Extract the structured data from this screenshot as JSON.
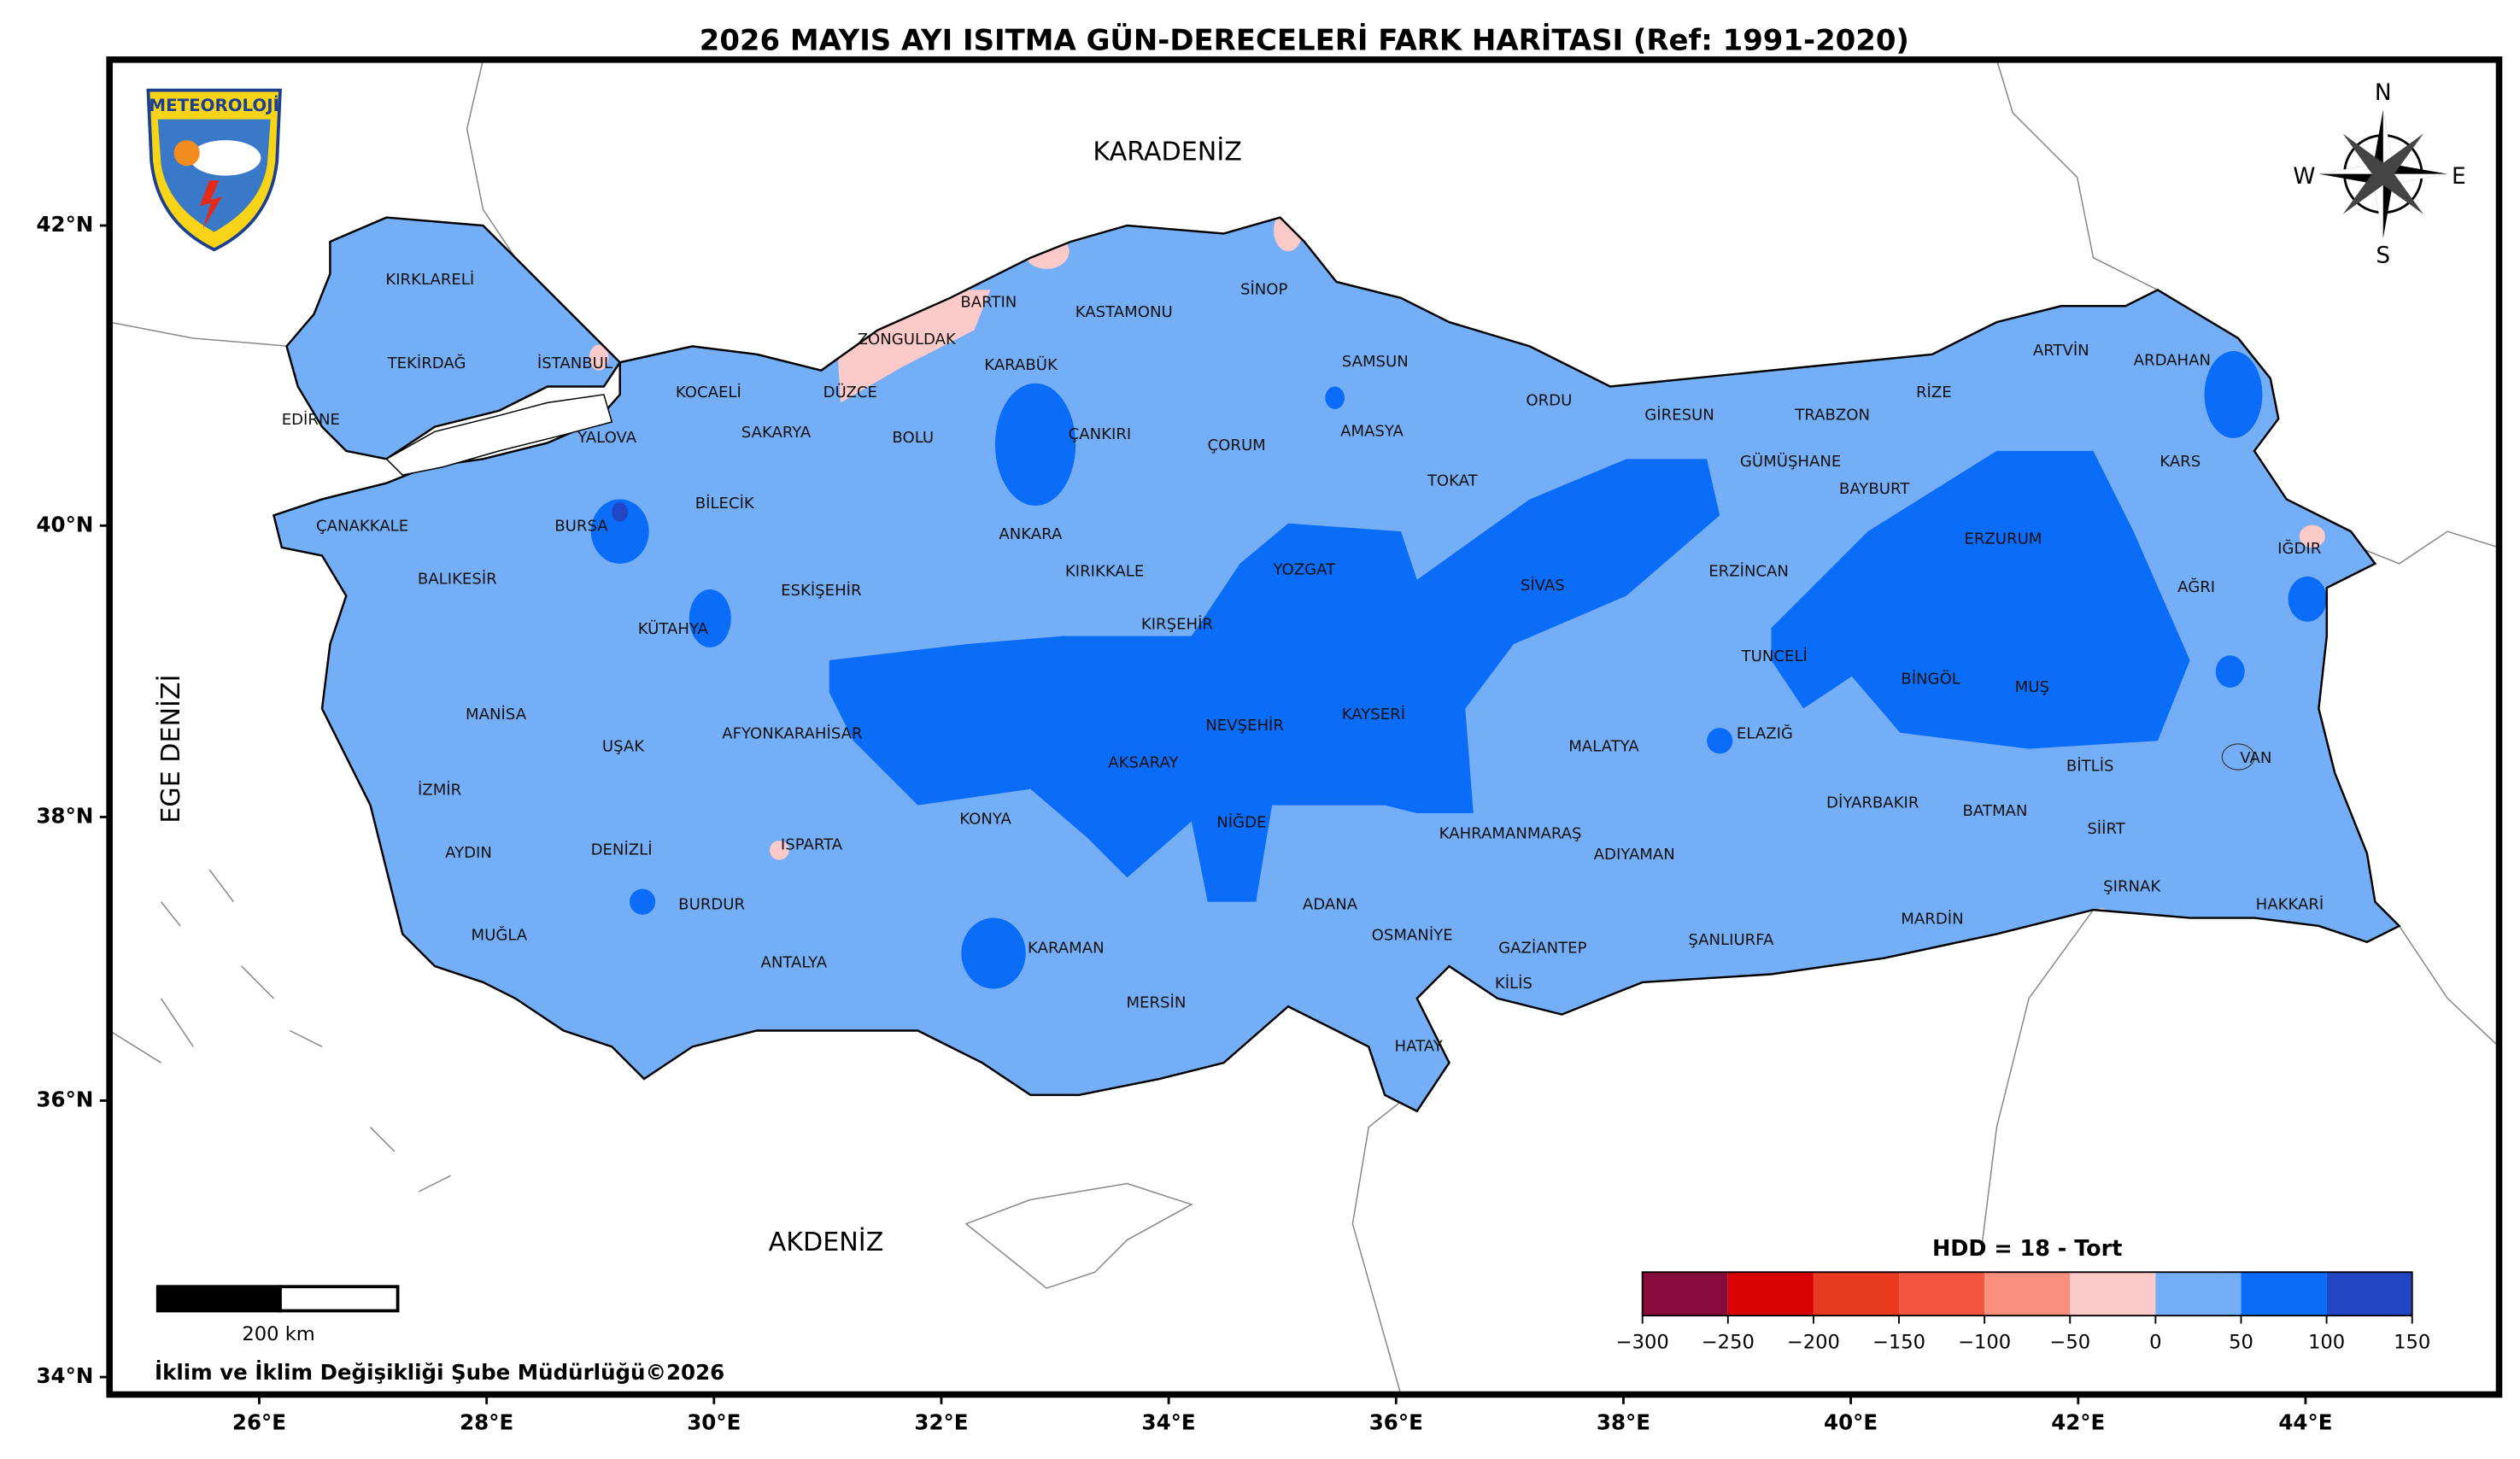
{
  "title": "2026 MAYIS AYI ISITMA GÜN-DERECELERİ FARK HARİTASI (Ref: 1991-2020)",
  "seas": [
    "KARADENİZ",
    "AKDENİZ",
    "EGE DENİZİ"
  ],
  "provinces": [
    "KIRKLARELİ",
    "TEKİRDAĞ",
    "İSTANBUL",
    "EDİRNE",
    "YALOVA",
    "KOCAELİ",
    "SAKARYA",
    "DÜZCE",
    "ZONGULDAK",
    "BARTIN",
    "KASTAMONU",
    "SİNOP",
    "KARABÜK",
    "BOLU",
    "ÇANKIRI",
    "ÇORUM",
    "SAMSUN",
    "AMASYA",
    "ORDU",
    "GİRESUN",
    "TRABZON",
    "RİZE",
    "ARTVİN",
    "ARDAHAN",
    "KARS",
    "GÜMÜŞHANE",
    "BAYBURT",
    "ERZURUM",
    "IĞDIR",
    "AĞRI",
    "TOKAT",
    "YOZGAT",
    "SİVAS",
    "ERZİNCAN",
    "ÇANAKKALE",
    "BALIKESİR",
    "BURSA",
    "BİLECİK",
    "ESKİŞEHİR",
    "KÜTAHYA",
    "ANKARA",
    "KIRIKKALE",
    "KIRŞEHİR",
    "TUNCELİ",
    "BİNGÖL",
    "MUŞ",
    "VAN",
    "BİTLİS",
    "ELAZIĞ",
    "MALATYA",
    "KAYSERİ",
    "NEVŞEHİR",
    "AKSARAY",
    "MANİSA",
    "UŞAK",
    "AFYONKARAHİSAR",
    "İZMİR",
    "AYDIN",
    "DENİZLİ",
    "KONYA",
    "NİĞDE",
    "KAHRAMANMARAŞ",
    "ADIYAMAN",
    "DİYARBAKIR",
    "BATMAN",
    "SİİRT",
    "ŞIRNAK",
    "HAKKARİ",
    "MARDİN",
    "ŞANLIURFA",
    "GAZİANTEP",
    "KİLİS",
    "OSMANİYE",
    "ADANA",
    "HATAY",
    "MERSİN",
    "KARAMAN",
    "ISPARTA",
    "BURDUR",
    "ANTALYA",
    "MUĞLA"
  ],
  "lat_ticks": [
    {
      "value": 34,
      "label": "34°N"
    },
    {
      "value": 36,
      "label": "36°N"
    },
    {
      "value": 38,
      "label": "38°N"
    },
    {
      "value": 40,
      "label": "40°N"
    },
    {
      "value": 42,
      "label": "42°N"
    }
  ],
  "lon_ticks": [
    {
      "value": 26,
      "label": "26°E"
    },
    {
      "value": 28,
      "label": "28°E"
    },
    {
      "value": 30,
      "label": "30°E"
    },
    {
      "value": 32,
      "label": "32°E"
    },
    {
      "value": 34,
      "label": "34°E"
    },
    {
      "value": 36,
      "label": "36°E"
    },
    {
      "value": 38,
      "label": "38°E"
    },
    {
      "value": 40,
      "label": "40°E"
    },
    {
      "value": 42,
      "label": "42°E"
    },
    {
      "value": 44,
      "label": "44°E"
    }
  ],
  "legend": {
    "title": "HDD = 18 - Tort",
    "colors": [
      "#870c3b",
      "#d70202",
      "#e83a1f",
      "#f25641",
      "#fb8f7d",
      "#fdcaca",
      "#74aef6",
      "#0b6cf7",
      "#2046c6"
    ],
    "ticks": [
      {
        "value": -300,
        "label": "−300"
      },
      {
        "value": -250,
        "label": "−250"
      },
      {
        "value": -200,
        "label": "−200"
      },
      {
        "value": -150,
        "label": "−150"
      },
      {
        "value": -100,
        "label": "−100"
      },
      {
        "value": -50,
        "label": "−50"
      },
      0,
      50,
      100,
      150
    ]
  },
  "scale_bar": "200 km",
  "credit": "İklim ve İklim Değişikliği Şube Müdürlüğü©2026",
  "logo": "METEOROLOJİ",
  "compass": [
    "N",
    "E",
    "S",
    "W"
  ]
}
